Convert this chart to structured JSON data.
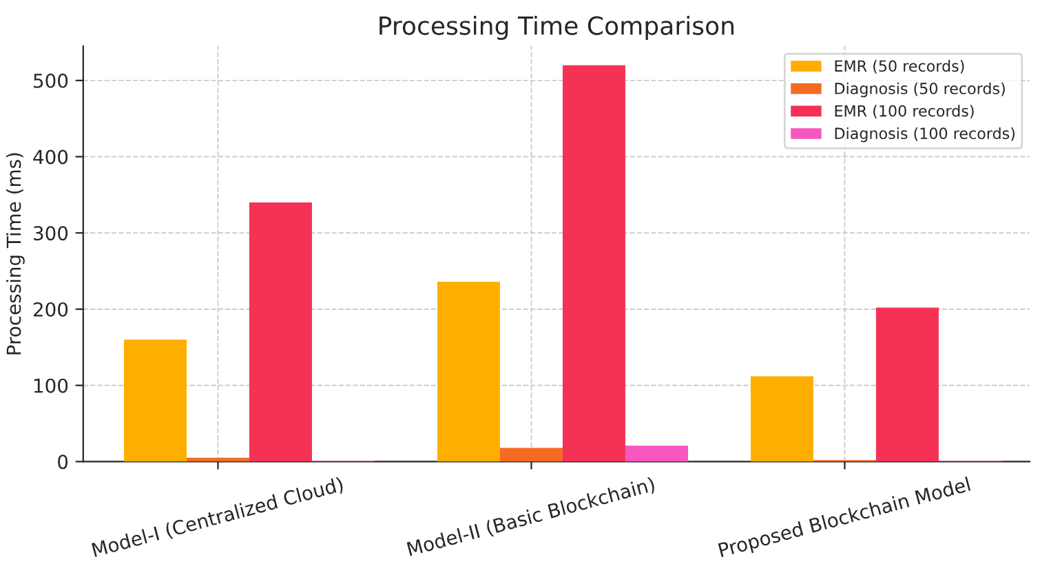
{
  "chart_data": {
    "type": "bar",
    "title": "Processing Time Comparison",
    "ylabel": "Processing Time (ms)",
    "categories": [
      "Model-I (Centralized Cloud)",
      "Model-II (Basic Blockchain)",
      "Proposed Blockchain Model"
    ],
    "series": [
      {
        "name": "EMR (50 records)",
        "color": "#ffae00",
        "values": [
          160,
          236,
          112
        ]
      },
      {
        "name": "Diagnosis (50 records)",
        "color": "#f46b23",
        "values": [
          5,
          18,
          2
        ]
      },
      {
        "name": "EMR (100 records)",
        "color": "#f43256",
        "values": [
          340,
          520,
          202
        ]
      },
      {
        "name": "Diagnosis (100 records)",
        "color": "#f856c1",
        "values": [
          1,
          21,
          1
        ]
      }
    ],
    "ylim": [
      0,
      545
    ],
    "yticks": [
      0,
      100,
      200,
      300,
      400,
      500
    ],
    "grid": true,
    "legend": "top right"
  }
}
